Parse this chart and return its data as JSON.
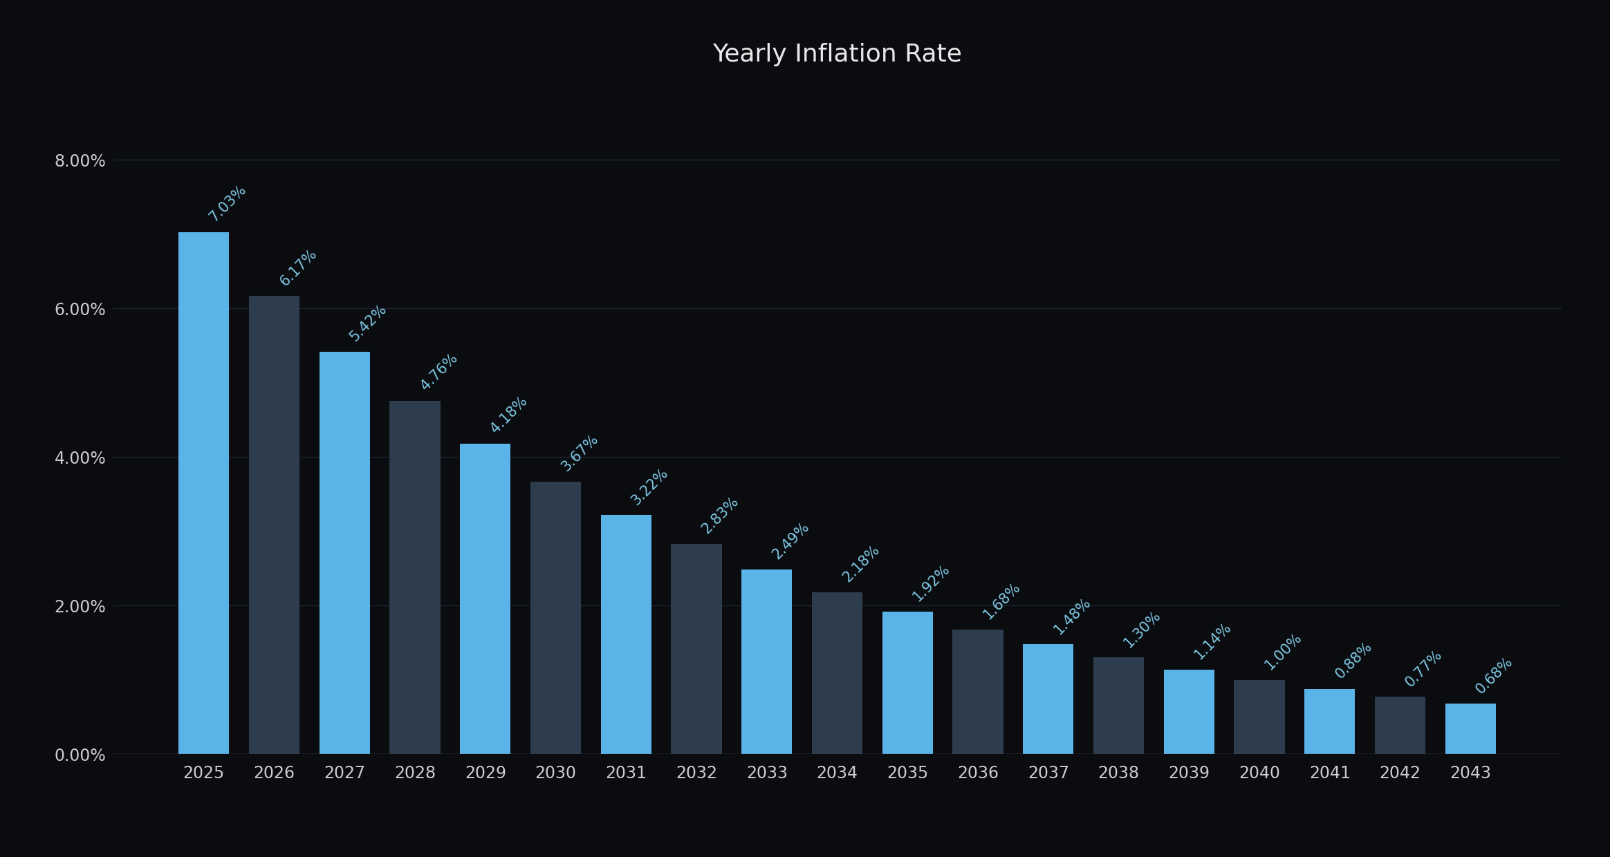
{
  "title": "Yearly Inflation Rate",
  "categories": [
    "2025",
    "2026",
    "2027",
    "2028",
    "2029",
    "2030",
    "2031",
    "2032",
    "2033",
    "2034",
    "2035",
    "2036",
    "2037",
    "2038",
    "2039",
    "2040",
    "2041",
    "2042",
    "2043"
  ],
  "values": [
    7.03,
    6.17,
    5.42,
    4.76,
    4.18,
    3.67,
    3.22,
    2.83,
    2.49,
    2.18,
    1.92,
    1.68,
    1.48,
    1.3,
    1.14,
    1.0,
    0.88,
    0.77,
    0.68
  ],
  "labels": [
    "7.03%",
    "6.17%",
    "5.42%",
    "4.76%",
    "4.18%",
    "3.67%",
    "3.22%",
    "2.83%",
    "2.49%",
    "2.18%",
    "1.92%",
    "1.68%",
    "1.48%",
    "1.30%",
    "1.14%",
    "1.00%",
    "0.88%",
    "0.77%",
    "0.68%"
  ],
  "bar_color_bright": "#5ab4e8",
  "bar_color_dark": "#2d3d4d",
  "background_color": "#0a0c10",
  "text_color": "#cccccc",
  "label_color": "#7ec8e3",
  "grid_color": "#1e2533",
  "baseline_color": "#555555",
  "ylim_max": 9.0,
  "yticks": [
    0.0,
    2.0,
    4.0,
    6.0,
    8.0
  ],
  "ytick_labels": [
    "0.00%",
    "2.00%",
    "4.00%",
    "6.00%",
    "8.00%"
  ],
  "title_fontsize": 26,
  "tick_fontsize": 17,
  "label_fontsize": 15,
  "bar_width": 0.72
}
